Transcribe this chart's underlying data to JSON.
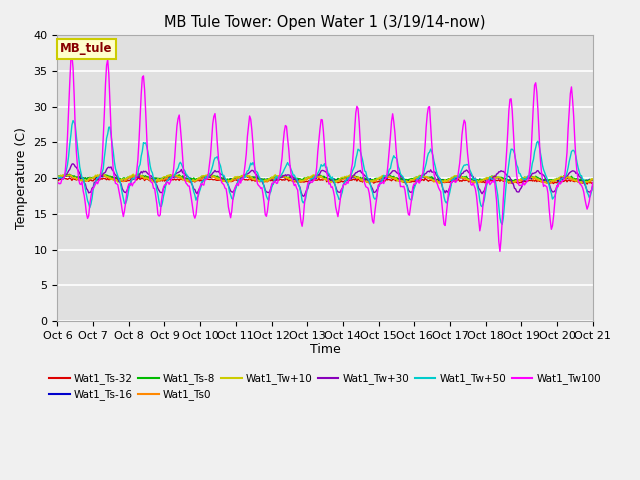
{
  "title": "MB Tule Tower: Open Water 1 (3/19/14-now)",
  "xlabel": "Time",
  "ylabel": "Temperature (C)",
  "ylim": [
    0,
    40
  ],
  "yticks": [
    0,
    5,
    10,
    15,
    20,
    25,
    30,
    35,
    40
  ],
  "x_tick_labels": [
    "Oct 6",
    "Oct 7",
    "Oct 8",
    "Oct 9",
    "Oct 10",
    "Oct 11",
    "Oct 12",
    "Oct 13",
    "Oct 14",
    "Oct 15",
    "Oct 16",
    "Oct 17",
    "Oct 18",
    "Oct 19",
    "Oct 20",
    "Oct 21"
  ],
  "annotation_label": "MB_tule",
  "annotation_bg": "#ffffcc",
  "annotation_edge": "#cccc00",
  "annotation_text_color": "#880000",
  "series": [
    {
      "label": "Wat1_Ts-32",
      "color": "#dd0000"
    },
    {
      "label": "Wat1_Ts-16",
      "color": "#0000cc"
    },
    {
      "label": "Wat1_Ts-8",
      "color": "#00bb00"
    },
    {
      "label": "Wat1_Ts0",
      "color": "#ff8800"
    },
    {
      "label": "Wat1_Tw+10",
      "color": "#cccc00"
    },
    {
      "label": "Wat1_Tw+30",
      "color": "#8800bb"
    },
    {
      "label": "Wat1_Tw+50",
      "color": "#00cccc"
    },
    {
      "label": "Wat1_Tw100",
      "color": "#ff00ff"
    }
  ],
  "fig_bg": "#e8e8e8",
  "axes_bg": "#e0e0e0",
  "grid_color": "#ffffff",
  "spine_color": "#aaaaaa"
}
